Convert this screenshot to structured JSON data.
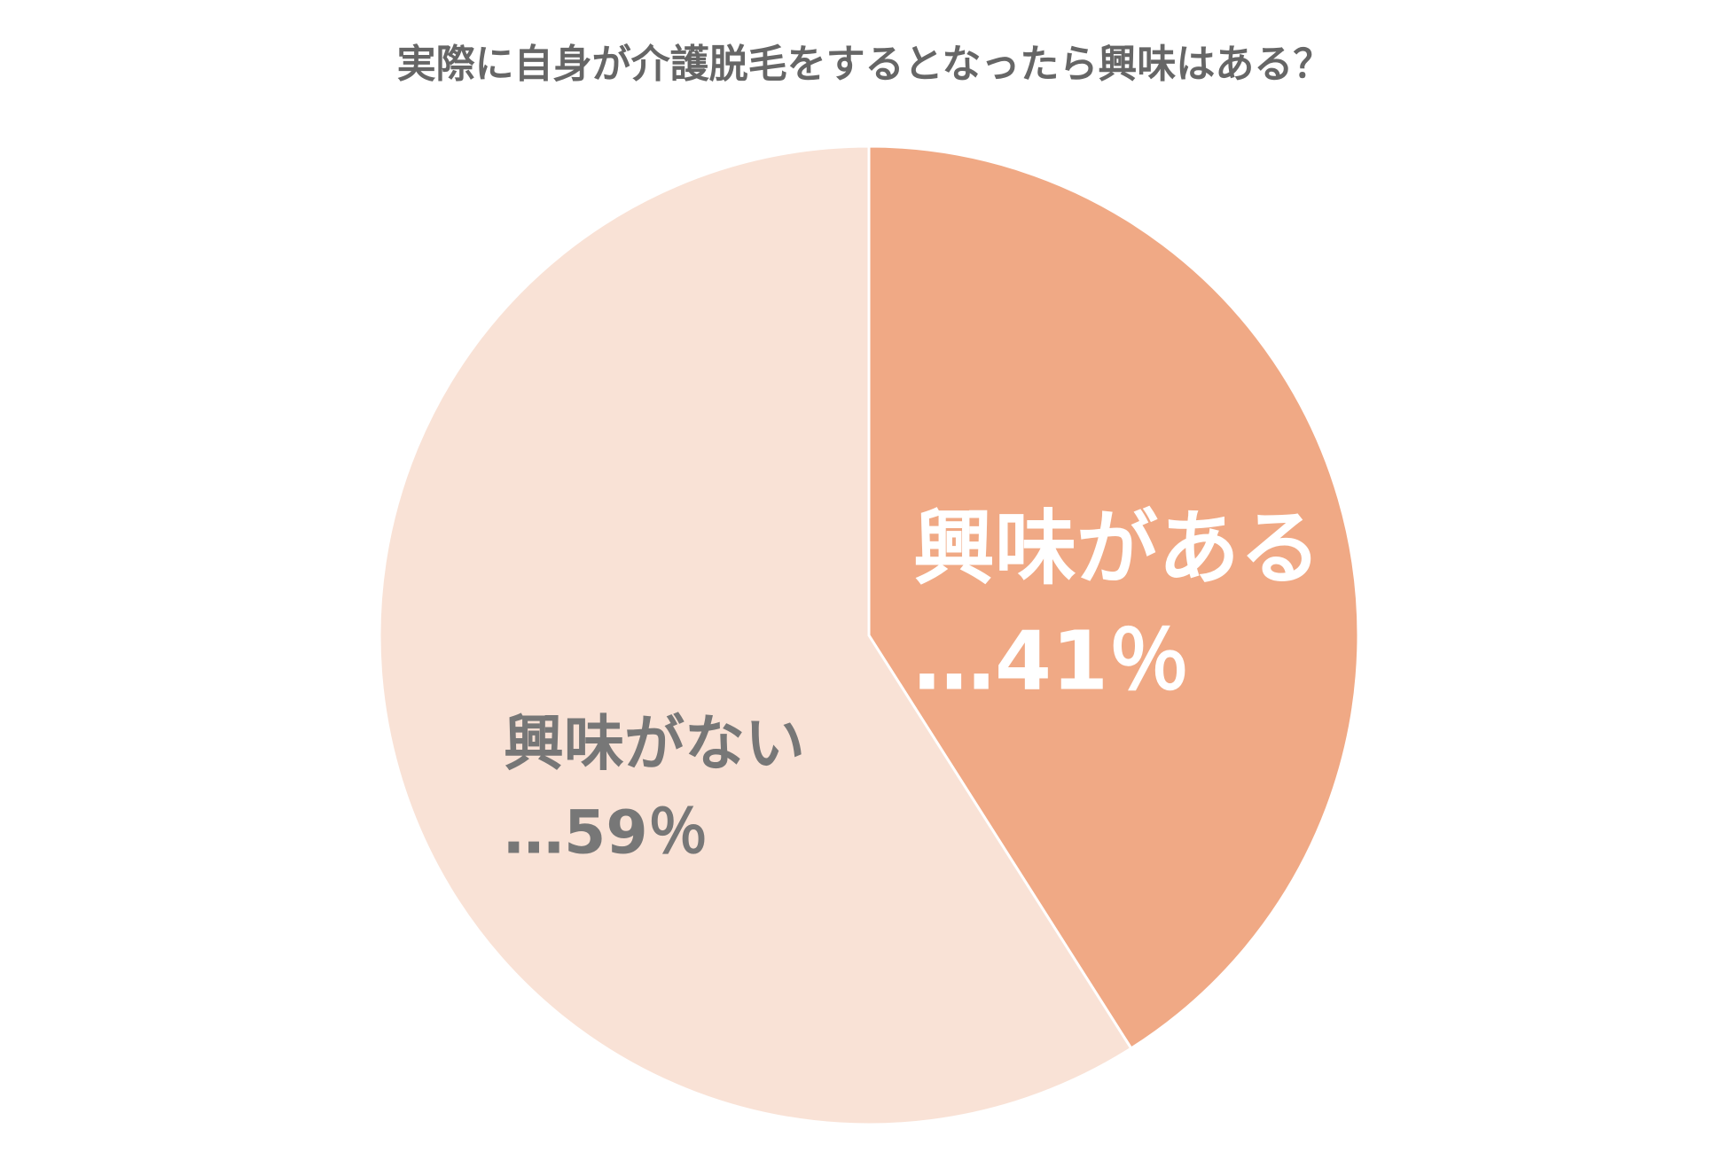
{
  "chart_data": {
    "type": "pie",
    "title": "実際に自身が介護脱毛をするとなったら興味はある？",
    "categories": [
      "興味がある",
      "興味がない"
    ],
    "values": [
      41,
      59
    ],
    "value_labels": [
      "…41％",
      "…59％"
    ],
    "colors": [
      "#f0a985",
      "#f9e2d6"
    ]
  }
}
